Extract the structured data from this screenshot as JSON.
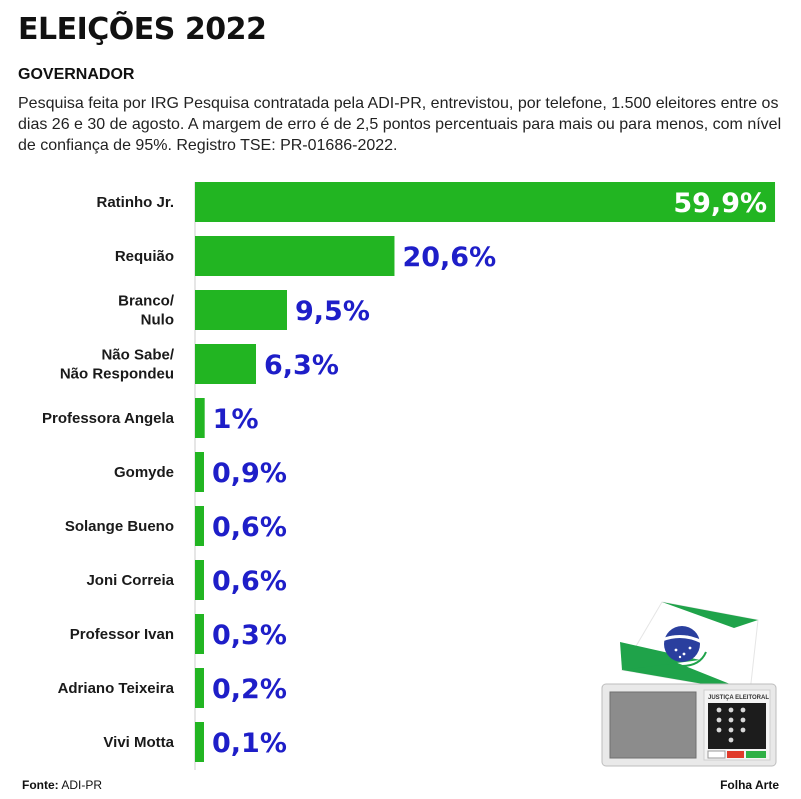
{
  "header": {
    "title": "ELEIÇÕES 2022",
    "subtitle": "GOVERNADOR",
    "description": "Pesquisa feita por IRG Pesquisa contratada pela ADI-PR, entrevistou, por telefone, 1.500 eleitores entre os dias 26 e 30 de agosto. A margem de erro é de 2,5 pontos percentuais para mais ou para menos, com nível de confiança de 95%. Registro TSE: PR-01686-2022."
  },
  "chart_data": {
    "type": "bar",
    "orientation": "horizontal",
    "categories": [
      [
        "Ratinho Jr."
      ],
      [
        "Requião"
      ],
      [
        "Branco/",
        "Nulo"
      ],
      [
        "Não Sabe/",
        "Não Respondeu"
      ],
      [
        "Professora Angela"
      ],
      [
        "Gomyde"
      ],
      [
        "Solange Bueno"
      ],
      [
        "Joni Correia"
      ],
      [
        "Professor Ivan"
      ],
      [
        "Adriano Teixeira"
      ],
      [
        "Vivi Motta"
      ]
    ],
    "values": [
      59.9,
      20.6,
      9.5,
      6.3,
      1,
      0.9,
      0.6,
      0.6,
      0.3,
      0.2,
      0.1
    ],
    "value_labels": [
      "59,9%",
      "20,6%",
      "9,5%",
      "6,3%",
      "1%",
      "0,9%",
      "0,6%",
      "0,6%",
      "0,3%",
      "0,2%",
      "0,1%"
    ],
    "xlim": [
      0,
      60
    ],
    "grid": false,
    "bar_color": "#22b522",
    "value_color": "#1e1ec8",
    "value_inside_color": "#ffffff"
  },
  "illustration": {
    "label": "JUSTIÇA ELEITORAL",
    "flag_green": "#1fa34a",
    "flag_blue": "#2a3f9e"
  },
  "footer": {
    "source_label": "Fonte:",
    "source_value": "ADI-PR",
    "credit": "Folha Arte"
  }
}
